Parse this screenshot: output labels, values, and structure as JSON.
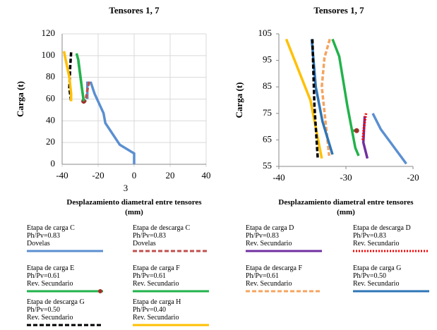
{
  "chart_data": [
    {
      "type": "line",
      "title": "Tensores 1, 7",
      "ylabel": "Carga (t)",
      "xlabel": "Desplazamiento diametral entre tensores\n(mm)",
      "annotation": "3",
      "xlim": [
        -40,
        40
      ],
      "xticks": [
        -40,
        -20,
        0,
        20,
        40
      ],
      "ylim": [
        0,
        120
      ],
      "yticks": [
        0,
        20,
        40,
        60,
        80,
        100,
        120
      ],
      "grid": true,
      "series": [
        {
          "name": "Etapa de carga C\nPh/Pv=0.83\nDovelas",
          "color": "#5b8fd1",
          "x": [
            0,
            0,
            -8,
            -16,
            -17,
            -22,
            -24,
            -26,
            -26
          ],
          "values": [
            0,
            10,
            18,
            38,
            47,
            65,
            75,
            75,
            60
          ]
        },
        {
          "name": "Etapa de descarga C\nPh/Pv=0.83\nDovelas",
          "color": "#c0504d",
          "dash": "dashed",
          "x": [
            -25,
            -26,
            -27
          ],
          "values": [
            76,
            68,
            58
          ]
        },
        {
          "name": "Etapa de carga E\nPh/Pv=0.61\nRev. Secundario",
          "color": "#21b24b",
          "marker": true,
          "x": [
            -31,
            -29,
            -28
          ],
          "values": [
            95,
            70,
            58
          ]
        },
        {
          "name": "Etapa de carga F\nPh/Pv=0.61\nRev. Secundario",
          "color": "#21b24b",
          "x": [
            -32,
            -31,
            -29,
            -28
          ],
          "values": [
            102,
            96,
            70,
            58
          ]
        },
        {
          "name": "Etapa de descarga G\nPh/Pv=0.50\nRev. Secundario",
          "color": "#000000",
          "dash": "dashed",
          "x": [
            -35,
            -35.5,
            -36,
            -35
          ],
          "values": [
            103,
            90,
            70,
            58
          ]
        },
        {
          "name": "Etapa de carga H\nPh/Pv=0.40\nRev. Secundario",
          "color": "#ffc000",
          "x": [
            -39,
            -36,
            -35,
            -35
          ],
          "values": [
            104,
            80,
            65,
            58
          ]
        }
      ]
    },
    {
      "type": "line",
      "title": "Tensores 1, 7",
      "ylabel": "Carga (t)",
      "xlabel": "Desplazamiento diametral entre tensores\n(mm)",
      "xlim": [
        -40,
        -20
      ],
      "xticks": [
        -40,
        -30,
        -20
      ],
      "ylim": [
        55,
        105
      ],
      "yticks": [
        55,
        65,
        75,
        85,
        95,
        105
      ],
      "grid": false,
      "series": [
        {
          "name": "Etapa de carga D\nPh/Pv=0.83\nRev. Secundario",
          "color": "#7030a0",
          "x": [
            -27.2,
            -27.4,
            -26.8
          ],
          "values": [
            74,
            64,
            58
          ]
        },
        {
          "name": "Etapa de descarga D\nPh/Pv=0.83\nRev. Secundario",
          "color": "#ff0000",
          "dash": "dotted",
          "x": [
            -27,
            -27.3,
            -27.5
          ],
          "values": [
            75,
            70,
            65
          ]
        },
        {
          "name": "Etapa de descarga F\nPh/Pv=0.61\nRev. Secundario",
          "color": "#f4a460",
          "dash": "dashed",
          "x": [
            -32.4,
            -33.2,
            -33.6,
            -32.5
          ],
          "values": [
            103,
            96,
            85,
            59
          ]
        },
        {
          "name": "Etapa de carga G\nPh/Pv=0.50\nRev. Secundario",
          "color": "#2e75b6",
          "x": [
            -35.1,
            -34.5,
            -33.5,
            -32
          ],
          "values": [
            103,
            85,
            72,
            59.5
          ]
        },
        {
          "color": "#ffc000",
          "x": [
            -38.9,
            -35.3,
            -33.6
          ],
          "values": [
            103,
            80,
            58
          ]
        },
        {
          "color": "#000000",
          "dash": "dashed",
          "x": [
            -35,
            -34.7,
            -34.2
          ],
          "values": [
            103,
            78,
            58
          ]
        },
        {
          "color": "#21b24b",
          "x": [
            -32,
            -31,
            -29.8,
            -28.6,
            -28.1
          ],
          "values": [
            103,
            96.5,
            78,
            62,
            59
          ]
        },
        {
          "color": "#21b24b",
          "marker": true,
          "x": [
            -29,
            -28.4
          ],
          "values": [
            68.5,
            68.5
          ]
        },
        {
          "color": "#5b8fd1",
          "x": [
            -26,
            -24.8,
            -21
          ],
          "values": [
            75,
            69,
            56
          ]
        }
      ]
    }
  ]
}
